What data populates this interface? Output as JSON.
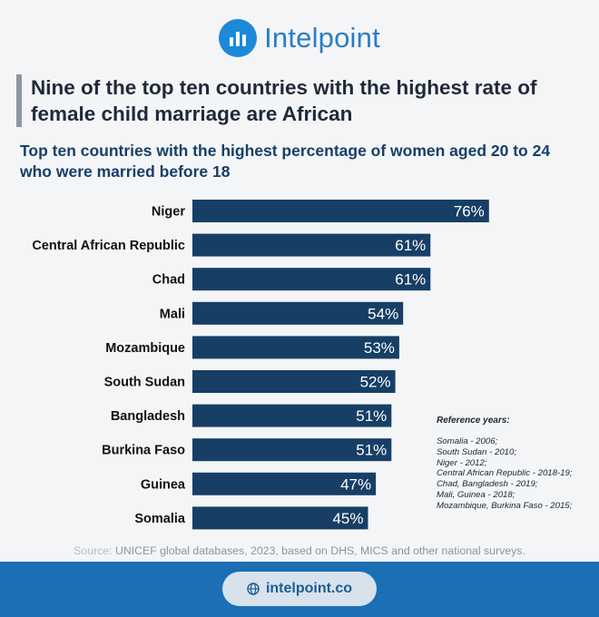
{
  "brand": {
    "name": "Intelpoint",
    "icon": "bar-chart-logo-icon",
    "color": "#1c8ad9"
  },
  "headline": [
    "Nine of the top ten countries with the highest rate of",
    "female child marriage are African"
  ],
  "chart_data": {
    "type": "bar",
    "orientation": "horizontal",
    "title": [
      "Top ten countries with the highest percentage of women aged 20 to 24",
      "who were married before 18"
    ],
    "categories": [
      "Niger",
      "Central African Republic",
      "Chad",
      "Mali",
      "Mozambique",
      "South Sudan",
      "Bangladesh",
      "Burkina Faso",
      "Guinea",
      "Somalia"
    ],
    "values": [
      76,
      61,
      61,
      54,
      53,
      52,
      51,
      51,
      47,
      45
    ],
    "data_labels": [
      "76%",
      "61%",
      "61%",
      "54%",
      "53%",
      "52%",
      "51%",
      "51%",
      "47%",
      "45%"
    ],
    "unit": "%",
    "xlim": [
      0,
      100
    ],
    "grid": false,
    "legend": "none",
    "bar_color": "#173f66"
  },
  "reference": {
    "title": "Reference years:",
    "items": [
      "Somalia - 2006;",
      "South Sudan - 2010;",
      "Niger - 2012;",
      "Central African Republic - 2018-19;",
      "Chad, Bangladesh - 2019;",
      "Mali, Guinea - 2018;",
      "Mozambique, Burkina Faso - 2015;"
    ]
  },
  "source": {
    "prefix": "Source:",
    "text": " UNICEF global databases, 2023, based on DHS, MICS and other national surveys."
  },
  "footer": {
    "link": "intelpoint.co",
    "icon": "globe-icon",
    "color": "#1c6fb4"
  }
}
